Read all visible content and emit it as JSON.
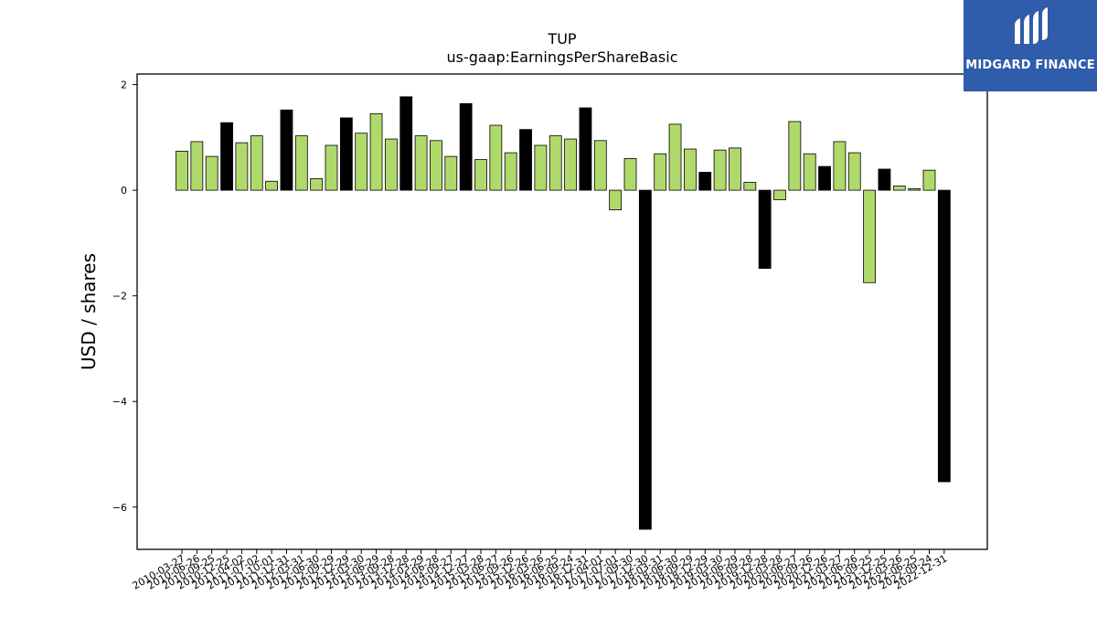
{
  "brand": {
    "name": "MIDGARD FINANCE",
    "bg_color": "#2f5cab",
    "text_color": "#ffffff"
  },
  "chart_data": {
    "type": "bar",
    "title": "TUP",
    "subtitle": "us-gaap:EarningsPerShareBasic",
    "xlabel": "",
    "ylabel": "USD / shares",
    "ylim": [
      -6.8,
      2.2
    ],
    "yticks": [
      2,
      0,
      -2,
      -4,
      -6
    ],
    "ytick_labels": [
      "2",
      "0",
      "−2",
      "−4",
      "−6"
    ],
    "grid": false,
    "legend": "none",
    "colors": {
      "quarterly": "#b0d96b",
      "annual": "#000000",
      "edge": "#000000"
    },
    "categories": [
      "2010-03-27",
      "2010-06-26",
      "2010-09-25",
      "2010-12-25",
      "2011-04-02",
      "2011-07-02",
      "2011-10-01",
      "2011-12-31",
      "2012-03-31",
      "2012-06-30",
      "2012-09-29",
      "2012-12-29",
      "2013-03-30",
      "2013-06-29",
      "2013-09-28",
      "2013-12-28",
      "2014-03-29",
      "2014-06-28",
      "2014-09-27",
      "2014-12-27",
      "2015-03-28",
      "2015-06-27",
      "2015-09-26",
      "2015-12-26",
      "2016-03-26",
      "2016-06-25",
      "2016-09-24",
      "2016-12-31",
      "2017-04-01",
      "2017-07-01",
      "2017-09-30",
      "2017-12-30",
      "2018-03-31",
      "2018-06-30",
      "2018-09-29",
      "2018-12-29",
      "2019-03-30",
      "2019-06-29",
      "2019-09-28",
      "2019-12-28",
      "2020-03-28",
      "2020-06-27",
      "2020-09-26",
      "2020-12-26",
      "2021-03-27",
      "2021-06-26",
      "2021-09-25",
      "2021-12-25",
      "2022-03-26",
      "2022-06-25",
      "2022-09-24",
      "2022-12-31"
    ],
    "values": [
      0.74,
      0.92,
      0.64,
      1.28,
      0.9,
      1.03,
      0.17,
      1.52,
      1.03,
      0.22,
      0.85,
      1.37,
      1.08,
      1.45,
      0.97,
      1.77,
      1.03,
      0.94,
      0.64,
      1.64,
      0.58,
      1.23,
      0.71,
      1.15,
      0.85,
      1.03,
      0.97,
      1.56,
      0.94,
      -0.37,
      0.6,
      -6.42,
      0.69,
      1.25,
      0.78,
      0.34,
      0.76,
      0.8,
      0.15,
      -1.48,
      -0.18,
      1.3,
      0.69,
      0.45,
      0.92,
      0.71,
      -1.75,
      0.4,
      0.08,
      0.03,
      0.38,
      -5.52
    ],
    "annual": [
      false,
      false,
      false,
      true,
      false,
      false,
      false,
      true,
      false,
      false,
      false,
      true,
      false,
      false,
      false,
      true,
      false,
      false,
      false,
      true,
      false,
      false,
      false,
      true,
      false,
      false,
      false,
      true,
      false,
      false,
      false,
      true,
      false,
      false,
      false,
      true,
      false,
      false,
      false,
      true,
      false,
      false,
      false,
      true,
      false,
      false,
      false,
      true,
      false,
      false,
      false,
      true
    ]
  }
}
